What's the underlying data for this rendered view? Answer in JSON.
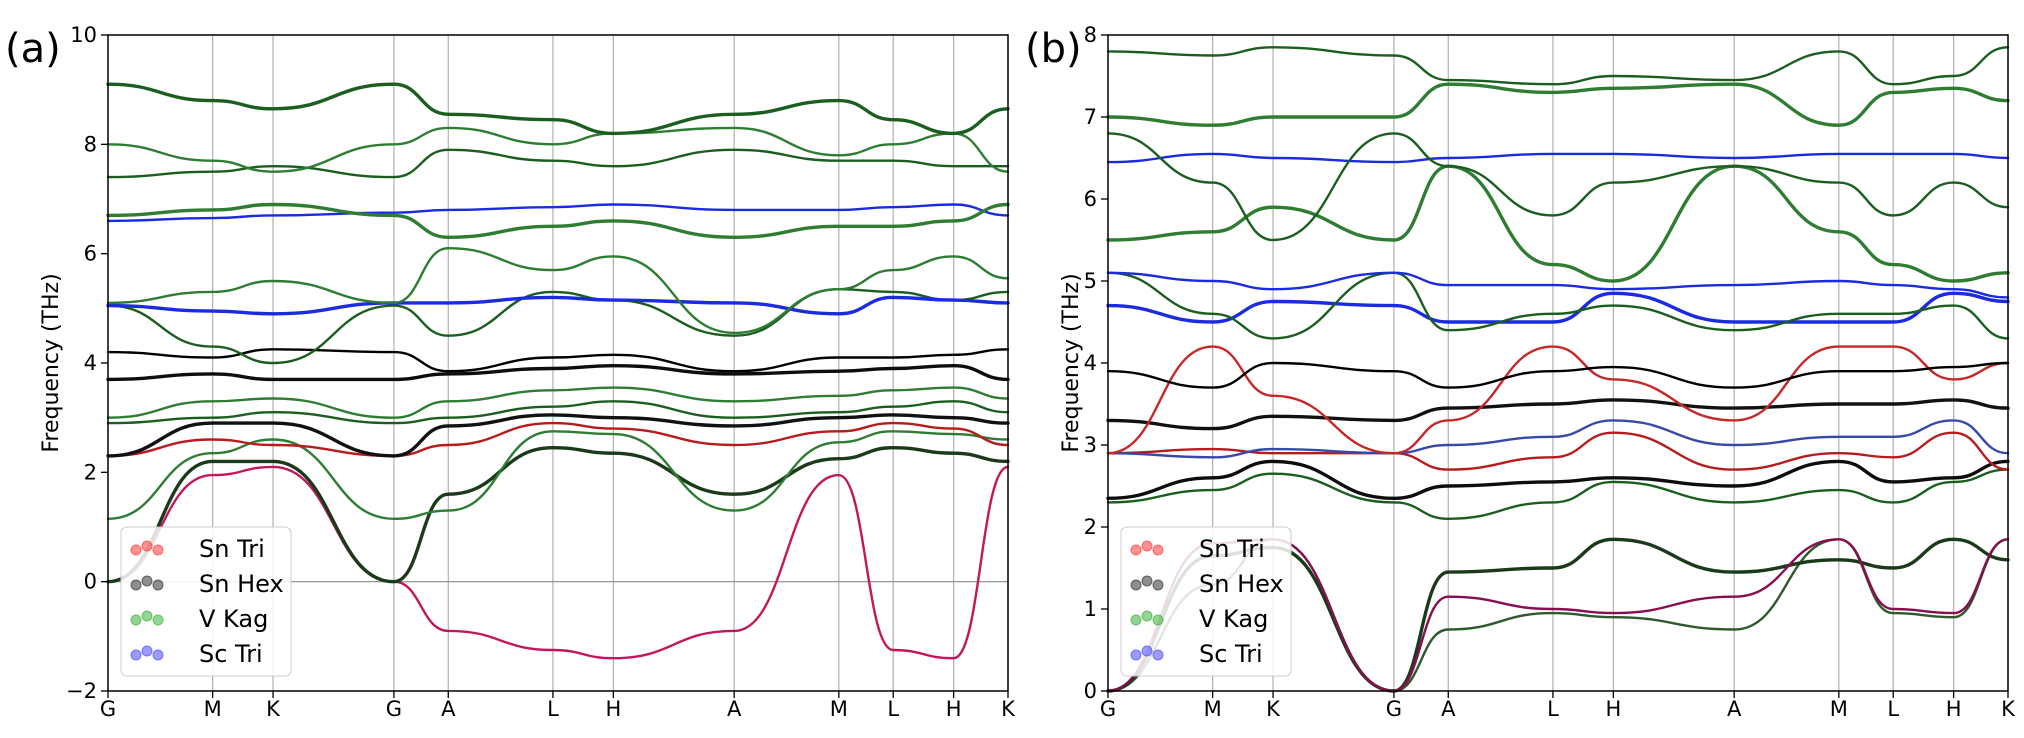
{
  "figure": {
    "labels": [
      "(a)",
      "(b)"
    ]
  },
  "legend_entries": [
    {
      "name": "Sn Tri",
      "color": "#ff3b3b"
    },
    {
      "name": "Sn Hex",
      "color": "#333333"
    },
    {
      "name": "V Kag",
      "color": "#3cb03c"
    },
    {
      "name": "Sc Tri",
      "color": "#4a4aff"
    }
  ],
  "chart_data": [
    {
      "type": "line",
      "panel": "(a)",
      "ylabel": "Frequency (THz)",
      "xlabel": "",
      "ylim": [
        -2,
        10
      ],
      "yticks": [
        -2,
        0,
        2,
        4,
        6,
        8,
        10
      ],
      "x_labels": [
        "G",
        "M",
        "K",
        "G",
        "A",
        "L",
        "H",
        "A",
        "M",
        "L",
        "H",
        "K"
      ],
      "x_positions": [
        0,
        0.866,
        1.366,
        2.366,
        2.816,
        3.682,
        4.182,
        5.182,
        6.048,
        6.498,
        6.998,
        7.448
      ],
      "grid": "vertical at high-symmetry points",
      "zero_line": true,
      "series": [
        {
          "color": "#c2185b",
          "values": [
            0.0,
            1.95,
            2.1,
            0.0,
            -0.9,
            -1.25,
            -1.4,
            -0.9,
            1.95,
            -1.25,
            -1.4,
            2.1
          ]
        },
        {
          "color": "#1a3a1a",
          "values": [
            0.0,
            2.2,
            2.2,
            0.0,
            1.6,
            2.45,
            2.35,
            1.6,
            2.25,
            2.45,
            2.35,
            2.2
          ]
        },
        {
          "color": "#2e7d32",
          "values": [
            1.15,
            2.35,
            2.6,
            1.15,
            1.3,
            2.75,
            2.7,
            1.3,
            2.55,
            2.75,
            2.7,
            2.6
          ]
        },
        {
          "color": "#b71c1c",
          "values": [
            2.3,
            2.6,
            2.5,
            2.3,
            2.5,
            2.9,
            2.8,
            2.5,
            2.75,
            2.9,
            2.8,
            2.5
          ]
        },
        {
          "color": "#111111",
          "values": [
            2.3,
            2.9,
            2.9,
            2.3,
            2.85,
            3.05,
            3.0,
            2.85,
            3.0,
            3.05,
            3.0,
            2.9
          ]
        },
        {
          "color": "#1b5e20",
          "values": [
            2.9,
            3.0,
            3.1,
            2.9,
            3.0,
            3.2,
            3.3,
            3.0,
            3.1,
            3.2,
            3.3,
            3.1
          ]
        },
        {
          "color": "#2e7d32",
          "values": [
            3.0,
            3.3,
            3.35,
            3.0,
            3.3,
            3.5,
            3.55,
            3.3,
            3.4,
            3.5,
            3.55,
            3.35
          ]
        },
        {
          "color": "#0d0d0d",
          "values": [
            3.7,
            3.8,
            3.7,
            3.7,
            3.8,
            3.9,
            3.95,
            3.8,
            3.85,
            3.9,
            3.95,
            3.7
          ]
        },
        {
          "color": "#000000",
          "values": [
            4.2,
            4.1,
            4.25,
            4.2,
            3.85,
            4.1,
            4.15,
            3.85,
            4.1,
            4.1,
            4.15,
            4.25
          ]
        },
        {
          "color": "#1b5e20",
          "values": [
            5.05,
            4.3,
            4.0,
            5.05,
            4.5,
            5.3,
            5.15,
            4.5,
            5.35,
            5.3,
            5.15,
            5.3
          ]
        },
        {
          "color": "#1a2be0",
          "values": [
            5.05,
            4.95,
            4.9,
            5.1,
            5.1,
            5.2,
            5.15,
            5.1,
            4.9,
            5.2,
            5.15,
            5.1
          ]
        },
        {
          "color": "#2e7d32",
          "values": [
            5.1,
            5.3,
            5.5,
            5.1,
            6.1,
            5.7,
            5.95,
            4.55,
            5.35,
            5.7,
            5.95,
            5.55
          ]
        },
        {
          "color": "#1a2be0",
          "values": [
            6.6,
            6.65,
            6.7,
            6.75,
            6.8,
            6.85,
            6.9,
            6.8,
            6.8,
            6.85,
            6.9,
            6.7
          ]
        },
        {
          "color": "#2e7d32",
          "values": [
            6.7,
            6.8,
            6.9,
            6.7,
            6.3,
            6.5,
            6.6,
            6.3,
            6.5,
            6.5,
            6.6,
            6.9
          ]
        },
        {
          "color": "#1b5e20",
          "values": [
            7.4,
            7.5,
            7.6,
            7.4,
            7.9,
            7.7,
            7.6,
            7.9,
            7.7,
            7.7,
            7.6,
            7.6
          ]
        },
        {
          "color": "#2e7d32",
          "values": [
            8.0,
            7.7,
            7.5,
            8.0,
            8.3,
            8.0,
            8.2,
            8.3,
            7.8,
            8.0,
            8.2,
            7.5
          ]
        },
        {
          "color": "#1b5e20",
          "values": [
            9.1,
            8.8,
            8.65,
            9.1,
            8.55,
            8.45,
            8.2,
            8.55,
            8.8,
            8.45,
            8.2,
            8.65
          ]
        }
      ]
    },
    {
      "type": "line",
      "panel": "(b)",
      "ylabel": "Frequency (THz)",
      "xlabel": "",
      "ylim": [
        0,
        8
      ],
      "yticks": [
        0,
        1,
        2,
        3,
        4,
        5,
        6,
        7,
        8
      ],
      "x_labels": [
        "G",
        "M",
        "K",
        "G",
        "A",
        "L",
        "H",
        "A",
        "M",
        "L",
        "H",
        "K"
      ],
      "x_positions": [
        0,
        0.866,
        1.366,
        2.366,
        2.816,
        3.682,
        4.182,
        5.182,
        6.048,
        6.498,
        6.998,
        7.448
      ],
      "grid": "vertical at high-symmetry points",
      "zero_line": false,
      "series": [
        {
          "color": "#2e5a2e",
          "values": [
            0.0,
            1.3,
            1.85,
            0.0,
            0.75,
            0.95,
            0.9,
            0.75,
            1.85,
            0.95,
            0.9,
            1.85
          ]
        },
        {
          "color": "#1a3a1a",
          "values": [
            0.0,
            1.65,
            1.75,
            0.0,
            1.45,
            1.5,
            1.85,
            1.45,
            1.6,
            1.5,
            1.85,
            1.6
          ]
        },
        {
          "color": "#880e4f",
          "values": [
            0.0,
            1.8,
            1.85,
            0.0,
            1.15,
            1.0,
            0.95,
            1.15,
            1.85,
            1.0,
            0.95,
            1.85
          ]
        },
        {
          "color": "#1b5e20",
          "values": [
            2.3,
            2.45,
            2.65,
            2.3,
            2.1,
            2.3,
            2.55,
            2.3,
            2.45,
            2.3,
            2.55,
            2.7
          ]
        },
        {
          "color": "#0d0d0d",
          "values": [
            2.35,
            2.6,
            2.8,
            2.35,
            2.5,
            2.55,
            2.6,
            2.5,
            2.8,
            2.55,
            2.6,
            2.8
          ]
        },
        {
          "color": "#b71c1c",
          "values": [
            2.9,
            2.95,
            2.9,
            2.9,
            2.7,
            2.85,
            3.15,
            2.7,
            2.9,
            2.85,
            3.15,
            2.7
          ]
        },
        {
          "color": "#3949ab",
          "values": [
            2.9,
            2.85,
            2.95,
            2.9,
            3.0,
            3.1,
            3.3,
            3.0,
            3.1,
            3.1,
            3.3,
            2.9
          ]
        },
        {
          "color": "#111111",
          "values": [
            3.3,
            3.2,
            3.35,
            3.3,
            3.45,
            3.5,
            3.55,
            3.45,
            3.5,
            3.5,
            3.55,
            3.45
          ]
        },
        {
          "color": "#c62828",
          "values": [
            2.9,
            4.2,
            3.6,
            2.9,
            3.3,
            4.2,
            3.8,
            3.3,
            4.2,
            4.2,
            3.8,
            4.0
          ]
        },
        {
          "color": "#000000",
          "values": [
            3.9,
            3.7,
            4.0,
            3.9,
            3.7,
            3.9,
            3.95,
            3.7,
            3.9,
            3.9,
            3.95,
            4.0
          ]
        },
        {
          "color": "#1a2be0",
          "values": [
            4.7,
            4.5,
            4.75,
            4.7,
            4.5,
            4.5,
            4.85,
            4.5,
            4.5,
            4.5,
            4.85,
            4.75
          ]
        },
        {
          "color": "#1b5e20",
          "values": [
            5.1,
            4.6,
            4.3,
            5.1,
            4.4,
            4.6,
            4.7,
            4.4,
            4.6,
            4.6,
            4.7,
            4.3
          ]
        },
        {
          "color": "#1a2be0",
          "values": [
            5.1,
            5.0,
            4.9,
            5.1,
            4.95,
            4.95,
            4.9,
            4.95,
            5.0,
            4.95,
            4.9,
            4.8
          ]
        },
        {
          "color": "#2e7d32",
          "values": [
            5.5,
            5.6,
            5.9,
            5.5,
            6.4,
            5.2,
            5.0,
            6.4,
            5.6,
            5.2,
            5.0,
            5.1
          ]
        },
        {
          "color": "#1a2be0",
          "values": [
            6.45,
            6.55,
            6.5,
            6.45,
            6.5,
            6.55,
            6.55,
            6.5,
            6.55,
            6.55,
            6.55,
            6.5
          ]
        },
        {
          "color": "#1b5e20",
          "values": [
            6.8,
            6.2,
            5.5,
            6.8,
            6.4,
            5.8,
            6.2,
            6.4,
            6.2,
            5.8,
            6.2,
            5.9
          ]
        },
        {
          "color": "#2e7d32",
          "values": [
            7.0,
            6.9,
            7.0,
            7.0,
            7.4,
            7.3,
            7.35,
            7.4,
            6.9,
            7.3,
            7.35,
            7.2
          ]
        },
        {
          "color": "#1b5e20",
          "values": [
            7.8,
            7.75,
            7.85,
            7.75,
            7.45,
            7.4,
            7.5,
            7.45,
            7.8,
            7.4,
            7.5,
            7.85
          ]
        }
      ]
    }
  ]
}
